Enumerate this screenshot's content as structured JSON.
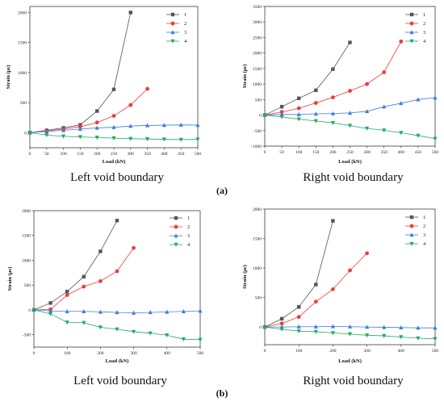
{
  "panel_labels": {
    "a": "(a)",
    "b": "(b)"
  },
  "chart_data": [
    {
      "type": "line",
      "caption": "Left void boundary",
      "xlabel": "Load (kN)",
      "ylabel": "Strain (με)",
      "xlim": [
        0,
        500
      ],
      "ylim": [
        -250,
        2100
      ],
      "xticks": [
        0,
        50,
        100,
        150,
        200,
        250,
        300,
        350,
        400,
        450,
        500
      ],
      "yticks": [
        0,
        500,
        1000,
        1500,
        2000
      ],
      "grid": false,
      "legend_position": "top-right",
      "series": [
        {
          "name": "1",
          "color": "#555555",
          "marker": "square",
          "x": [
            0,
            50,
            100,
            150,
            200,
            250,
            300
          ],
          "y": [
            0,
            40,
            80,
            130,
            360,
            720,
            2000
          ]
        },
        {
          "name": "2",
          "color": "#f03a3a",
          "marker": "circle",
          "x": [
            0,
            50,
            100,
            150,
            200,
            250,
            300,
            350
          ],
          "y": [
            0,
            30,
            60,
            100,
            170,
            280,
            460,
            730
          ]
        },
        {
          "name": "3",
          "color": "#3a7fe0",
          "marker": "triangle-up",
          "x": [
            0,
            50,
            100,
            150,
            200,
            250,
            300,
            350,
            400,
            450,
            500
          ],
          "y": [
            0,
            20,
            40,
            60,
            80,
            90,
            110,
            120,
            125,
            130,
            125
          ]
        },
        {
          "name": "4",
          "color": "#22aa66",
          "marker": "triangle-down",
          "x": [
            0,
            50,
            100,
            150,
            200,
            250,
            300,
            350,
            400,
            450,
            500
          ],
          "y": [
            0,
            -40,
            -60,
            -70,
            -80,
            -90,
            -100,
            -105,
            -110,
            -115,
            -110
          ]
        }
      ]
    },
    {
      "type": "line",
      "caption": "Right void boundary",
      "xlabel": "Load (kN)",
      "ylabel": "Strain (με)",
      "xlim": [
        0,
        500
      ],
      "ylim": [
        -1000,
        3500
      ],
      "xticks": [
        0,
        50,
        100,
        150,
        200,
        250,
        300,
        350,
        400,
        450,
        500
      ],
      "yticks": [
        -1000,
        -500,
        0,
        500,
        1000,
        1500,
        2000,
        2500,
        3000,
        3500
      ],
      "grid": false,
      "legend_position": "top-right",
      "series": [
        {
          "name": "1",
          "color": "#555555",
          "marker": "square",
          "x": [
            0,
            50,
            100,
            150,
            200,
            250
          ],
          "y": [
            0,
            270,
            540,
            800,
            1480,
            2340
          ]
        },
        {
          "name": "2",
          "color": "#f03a3a",
          "marker": "circle",
          "x": [
            0,
            50,
            100,
            150,
            200,
            250,
            300,
            350,
            400
          ],
          "y": [
            0,
            100,
            220,
            390,
            570,
            780,
            1000,
            1380,
            2370
          ]
        },
        {
          "name": "3",
          "color": "#3a7fe0",
          "marker": "triangle-up",
          "x": [
            0,
            50,
            100,
            150,
            200,
            250,
            300,
            350,
            400,
            450,
            500
          ],
          "y": [
            0,
            20,
            20,
            40,
            50,
            70,
            120,
            270,
            380,
            500,
            560
          ]
        },
        {
          "name": "4",
          "color": "#22aa66",
          "marker": "triangle-down",
          "x": [
            0,
            50,
            100,
            150,
            200,
            250,
            300,
            350,
            400,
            450,
            500
          ],
          "y": [
            0,
            -60,
            -130,
            -190,
            -250,
            -340,
            -430,
            -490,
            -570,
            -660,
            -760
          ]
        }
      ]
    },
    {
      "type": "line",
      "caption": "Left void boundary",
      "xlabel": "Load (kN)",
      "ylabel": "Strain (με)",
      "xlim": [
        0,
        500
      ],
      "ylim": [
        -750,
        2000
      ],
      "xticks": [
        0,
        100,
        200,
        300,
        400,
        500
      ],
      "yticks": [
        -500,
        0,
        500,
        1000,
        1500,
        2000
      ],
      "grid": false,
      "legend_position": "top-right",
      "series": [
        {
          "name": "1",
          "color": "#555555",
          "marker": "square",
          "x": [
            0,
            50,
            100,
            150,
            200,
            250
          ],
          "y": [
            0,
            140,
            370,
            670,
            1180,
            1800
          ]
        },
        {
          "name": "2",
          "color": "#f03a3a",
          "marker": "circle",
          "x": [
            0,
            50,
            100,
            150,
            200,
            250,
            300
          ],
          "y": [
            0,
            10,
            300,
            470,
            580,
            780,
            1250
          ]
        },
        {
          "name": "3",
          "color": "#3a7fe0",
          "marker": "triangle-up",
          "x": [
            0,
            50,
            100,
            150,
            200,
            250,
            300,
            350,
            400,
            450,
            500
          ],
          "y": [
            0,
            -20,
            -30,
            -30,
            -40,
            -50,
            -60,
            -50,
            -40,
            -30,
            -20
          ]
        },
        {
          "name": "4",
          "color": "#22aa66",
          "marker": "triangle-down",
          "x": [
            0,
            50,
            100,
            150,
            200,
            250,
            300,
            350,
            400,
            450,
            500
          ],
          "y": [
            0,
            -80,
            -250,
            -260,
            -350,
            -390,
            -440,
            -470,
            -510,
            -590,
            -600
          ]
        }
      ]
    },
    {
      "type": "line",
      "caption": "Right void boundary",
      "xlabel": "Load (kN)",
      "ylabel": "Strain (με)",
      "xlim": [
        0,
        500
      ],
      "ylim": [
        -300,
        2000
      ],
      "xticks": [
        0,
        100,
        200,
        300,
        400,
        500
      ],
      "yticks": [
        0,
        500,
        1000,
        1500,
        2000
      ],
      "grid": false,
      "legend_position": "top-right",
      "series": [
        {
          "name": "1",
          "color": "#555555",
          "marker": "square",
          "x": [
            0,
            50,
            100,
            150,
            200
          ],
          "y": [
            0,
            140,
            340,
            720,
            1800
          ]
        },
        {
          "name": "2",
          "color": "#f03a3a",
          "marker": "circle",
          "x": [
            0,
            50,
            100,
            150,
            200,
            250,
            300
          ],
          "y": [
            0,
            60,
            170,
            430,
            640,
            960,
            1250
          ]
        },
        {
          "name": "3",
          "color": "#3a7fe0",
          "marker": "triangle-up",
          "x": [
            0,
            50,
            100,
            150,
            200,
            250,
            300,
            350,
            400,
            450,
            500
          ],
          "y": [
            0,
            0,
            5,
            5,
            10,
            5,
            0,
            -5,
            -10,
            -15,
            -15
          ]
        },
        {
          "name": "4",
          "color": "#22aa66",
          "marker": "triangle-down",
          "x": [
            0,
            50,
            100,
            150,
            200,
            250,
            300,
            350,
            400,
            450,
            500
          ],
          "y": [
            0,
            -40,
            -70,
            -80,
            -100,
            -120,
            -140,
            -150,
            -170,
            -190,
            -200
          ]
        }
      ]
    }
  ]
}
